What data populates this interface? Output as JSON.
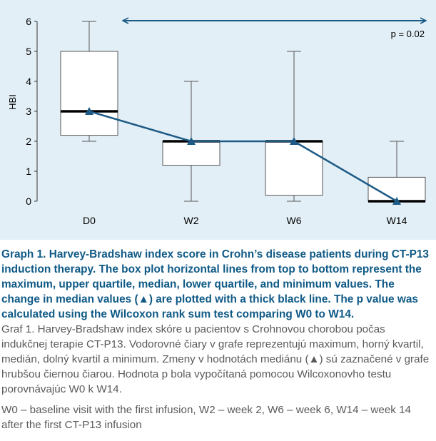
{
  "chart_data": {
    "type": "box",
    "categories": [
      "D0",
      "W2",
      "W6",
      "W14"
    ],
    "boxes": [
      {
        "label": "D0",
        "max": 6,
        "q3": 5,
        "median": 3,
        "q1": 2.2,
        "min": 2
      },
      {
        "label": "W2",
        "max": 4,
        "q3": 2,
        "median": 2,
        "q1": 1.2,
        "min": 0
      },
      {
        "label": "W6",
        "max": 5,
        "q3": 2,
        "median": 2,
        "q1": 0.2,
        "min": 0
      },
      {
        "label": "W14",
        "max": 2,
        "q3": 0.8,
        "median": 0,
        "q1": 0,
        "min": 0
      }
    ],
    "median_trend": [
      3,
      2,
      2,
      0
    ],
    "ylabel": "HBI",
    "ylim": [
      0,
      6
    ],
    "yticks": [
      "0",
      "1",
      "2",
      "3",
      "4",
      "5",
      "6"
    ],
    "annotation": "p = 0.02",
    "colors": {
      "background": "#e3eff6",
      "trend": "#1d5b86",
      "box": "#555555",
      "median": "#000000"
    }
  },
  "caption": {
    "en": "Graph 1. Harvey-Bradshaw index score in Crohn’s disease patients during CT-P13 induction therapy. The box plot horizontal lines from top to bottom represent the maximum, upper quartile, median, lower quartile, and minimum values. The change in median values (▲) are plotted with a thick black line. The p value was calculated using the Wilcoxon rank sum test comparing W0 to W14.",
    "sk": "Graf 1. Harvey-Bradshaw index skóre u pacientov s Crohnovou chorobou počas indukčnej terapie CT-P13. Vodorovné čiary v grafe reprezentujú maximum, horný kvartil, medián, dolný kvartil a minimum. Zmeny v hodnotách mediánu (▲) sú zaznačené v grafe hrubšou čiernou čiarou. Hodnota p bola vypočítaná pomocou Wilcoxonovho testu porovnávajúc W0 k W14.",
    "footnote": "W0 – baseline visit with the first infusion, W2 – week 2, W6 – week 6, W14 – week 14 after the first CT-P13 infusion"
  }
}
